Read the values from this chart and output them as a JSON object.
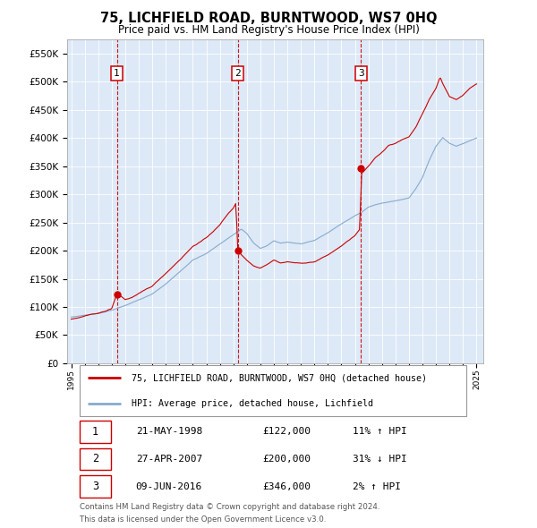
{
  "title": "75, LICHFIELD ROAD, BURNTWOOD, WS7 0HQ",
  "subtitle": "Price paid vs. HM Land Registry's House Price Index (HPI)",
  "footer1": "Contains HM Land Registry data © Crown copyright and database right 2024.",
  "footer2": "This data is licensed under the Open Government Licence v3.0.",
  "legend_label_red": "75, LICHFIELD ROAD, BURNTWOOD, WS7 0HQ (detached house)",
  "legend_label_blue": "HPI: Average price, detached house, Lichfield",
  "transactions": [
    {
      "num": 1,
      "date": "21-MAY-1998",
      "price": 122000,
      "hpi_diff": "11% ↑ HPI",
      "year": 1998.38
    },
    {
      "num": 2,
      "date": "27-APR-2007",
      "price": 200000,
      "hpi_diff": "31% ↓ HPI",
      "year": 2007.32
    },
    {
      "num": 3,
      "date": "09-JUN-2016",
      "price": 346000,
      "hpi_diff": "2% ↑ HPI",
      "year": 2016.44
    }
  ],
  "ylim": [
    0,
    575000
  ],
  "yticks": [
    0,
    50000,
    100000,
    150000,
    200000,
    250000,
    300000,
    350000,
    400000,
    450000,
    500000,
    550000
  ],
  "ytick_labels": [
    "£0",
    "£50K",
    "£100K",
    "£150K",
    "£200K",
    "£250K",
    "£300K",
    "£350K",
    "£400K",
    "£450K",
    "£500K",
    "£550K"
  ],
  "xlim_start": 1994.7,
  "xlim_end": 2025.5,
  "xticks": [
    1995,
    1996,
    1997,
    1998,
    1999,
    2000,
    2001,
    2002,
    2003,
    2004,
    2005,
    2006,
    2007,
    2008,
    2009,
    2010,
    2011,
    2012,
    2013,
    2014,
    2015,
    2016,
    2017,
    2018,
    2019,
    2020,
    2021,
    2022,
    2023,
    2024,
    2025
  ],
  "bg_color": "#dde9f7",
  "red_color": "#cc0000",
  "blue_color": "#88aacc",
  "vline_color": "#cc0000"
}
